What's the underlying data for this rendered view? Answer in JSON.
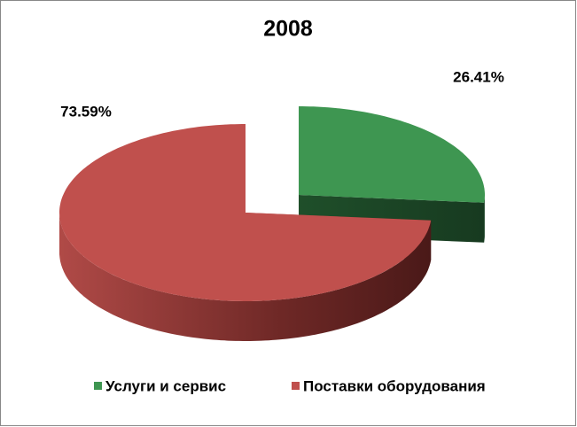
{
  "chart_data": {
    "type": "pie",
    "title": "2008",
    "categories": [
      "Услуги и сервис",
      "Поставки оборудования"
    ],
    "values": [
      26.41,
      73.59
    ],
    "value_labels": [
      "26.41%",
      "73.59%"
    ],
    "colors": [
      "#3e9651",
      "#c0504d"
    ],
    "legend": "bottom"
  }
}
